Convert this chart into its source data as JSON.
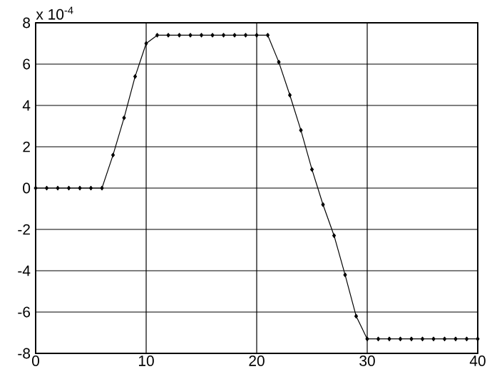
{
  "chart_data": {
    "type": "line",
    "x": [
      0,
      1,
      2,
      3,
      4,
      5,
      6,
      7,
      8,
      9,
      10,
      11,
      12,
      13,
      14,
      15,
      16,
      17,
      18,
      19,
      20,
      21,
      22,
      23,
      24,
      25,
      26,
      27,
      28,
      29,
      30,
      31,
      32,
      33,
      34,
      35,
      36,
      37,
      38,
      39,
      40
    ],
    "series": [
      {
        "color": "#000000",
        "values": [
          0,
          0,
          0,
          0,
          0,
          0,
          0,
          1.6,
          3.4,
          5.4,
          7.0,
          7.4,
          7.4,
          7.4,
          7.4,
          7.4,
          7.4,
          7.4,
          7.4,
          7.4,
          7.4,
          7.4,
          6.1,
          4.5,
          2.8,
          0.9,
          -0.8,
          -2.3,
          -4.2,
          -6.2,
          -7.3,
          -7.3,
          -7.3,
          -7.3,
          -7.3,
          -7.3,
          -7.3,
          -7.3,
          -7.3,
          -7.3,
          -7.3
        ]
      }
    ],
    "xlim": [
      0,
      40
    ],
    "ylim": [
      -8,
      8
    ],
    "xticks": [
      0,
      10,
      20,
      30,
      40
    ],
    "yticks": [
      -8,
      -6,
      -4,
      -2,
      0,
      2,
      4,
      6,
      8
    ],
    "grid": true,
    "marker": "diamond",
    "line_style": "solid",
    "annotations": [
      "x 10$^{-4}$"
    ]
  }
}
